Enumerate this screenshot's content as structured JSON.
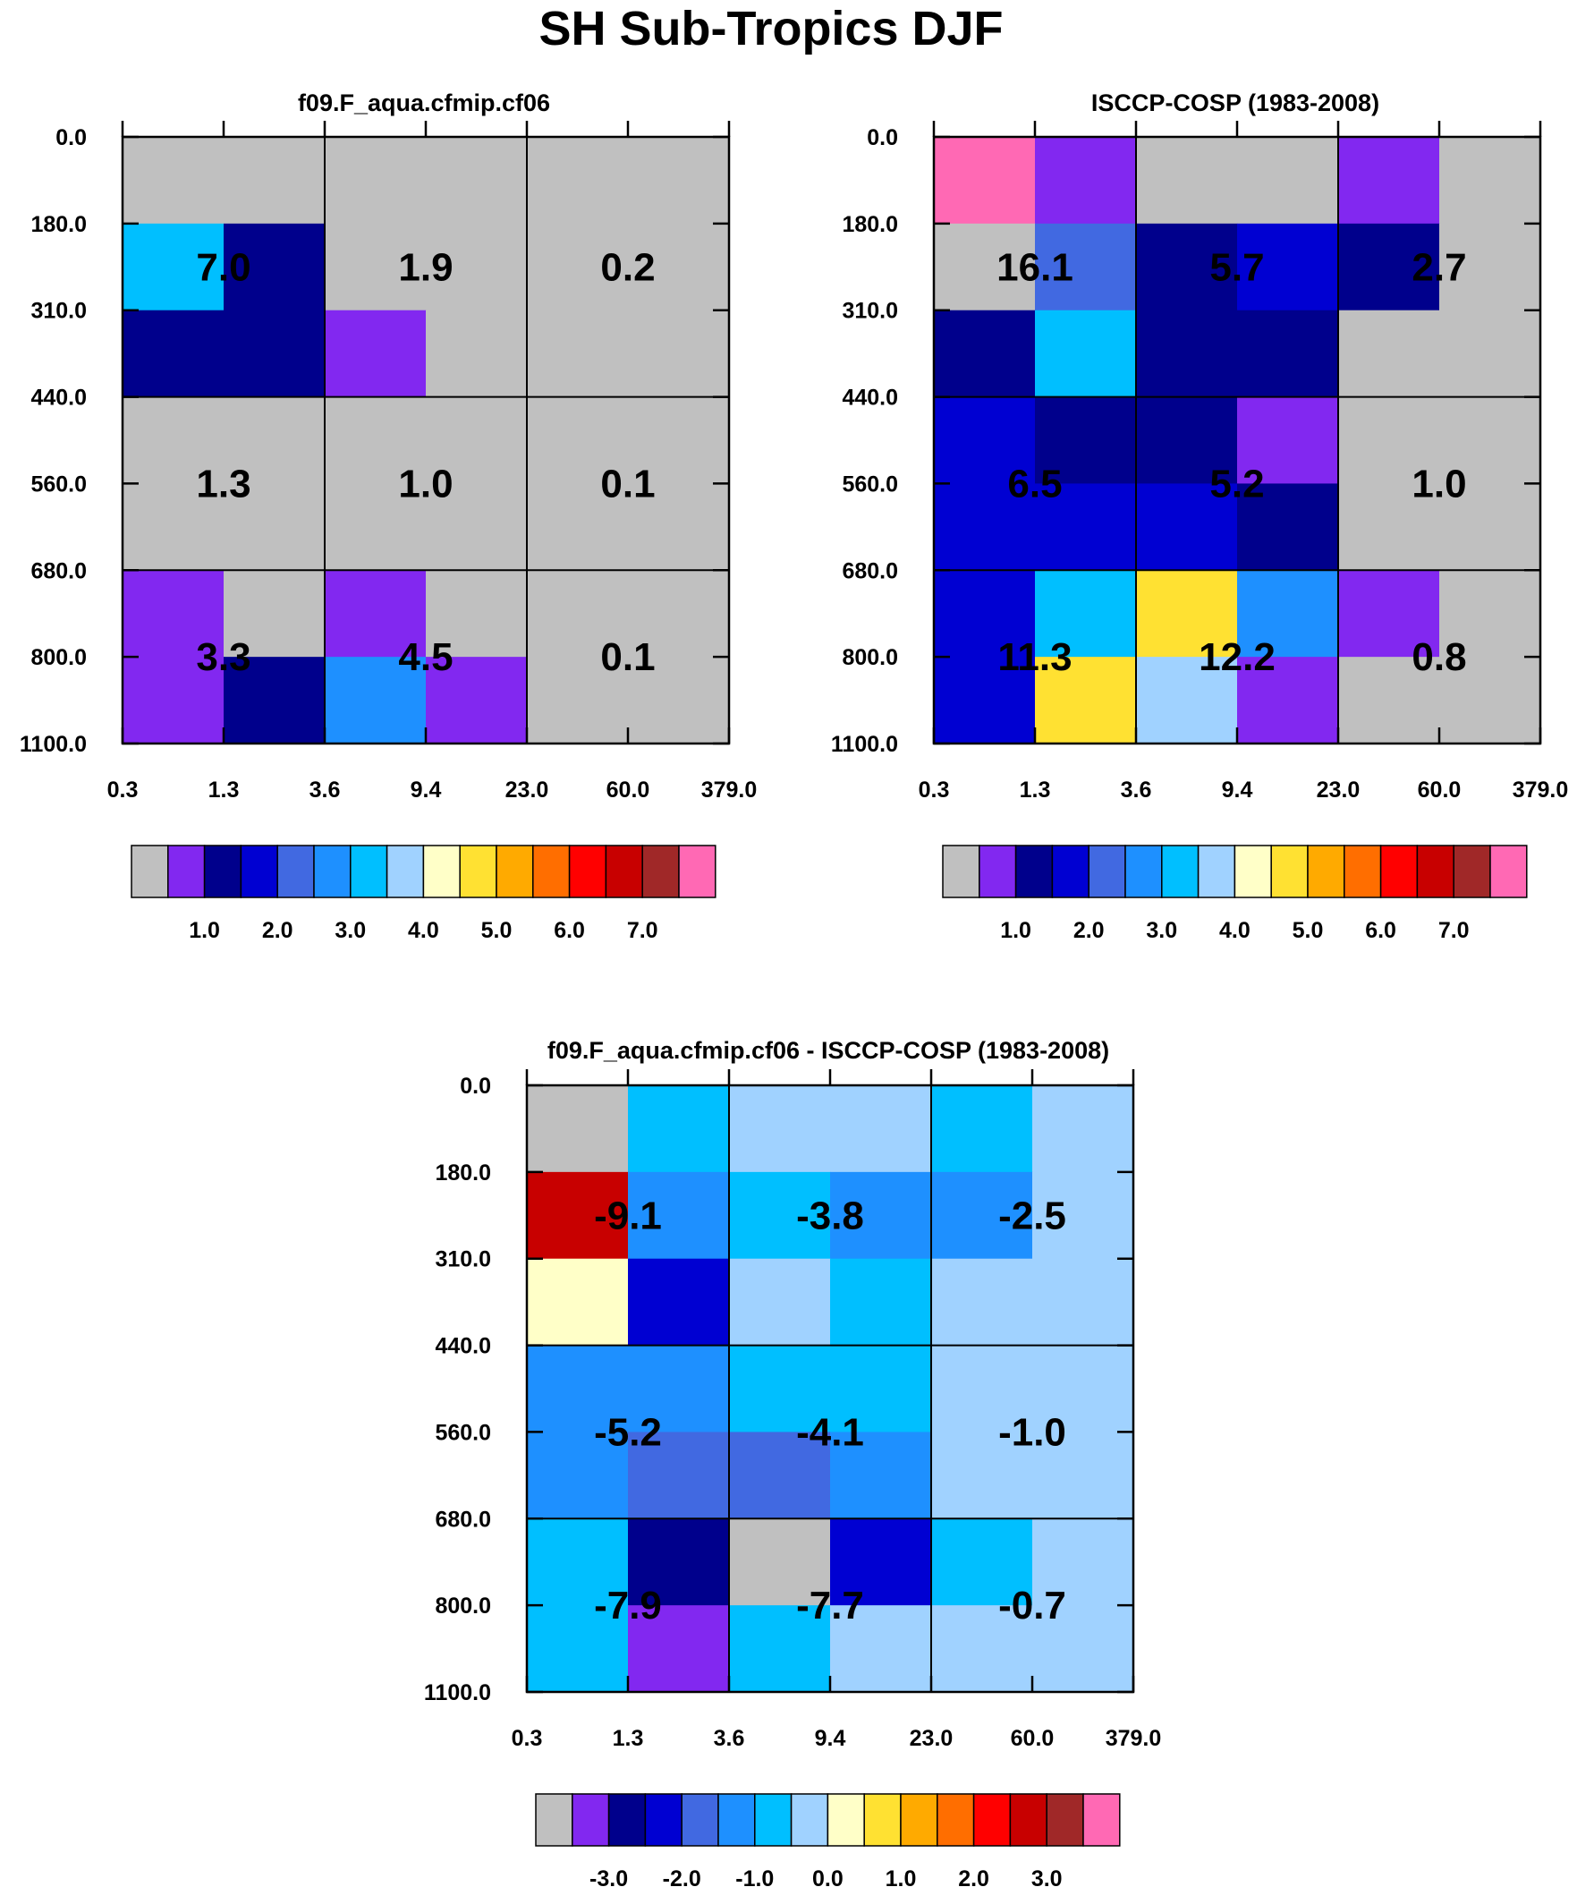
{
  "figure": {
    "title": "SH Sub-Tropics DJF"
  },
  "palette": {
    "colors": [
      "#c0c0c0",
      "#8228f0",
      "#00008c",
      "#0000d2",
      "#4169e1",
      "#1e90ff",
      "#00bfff",
      "#a0d2ff",
      "#ffffc8",
      "#ffe132",
      "#ffaa00",
      "#ff6e00",
      "#ff0000",
      "#c80000",
      "#a02828",
      "#ff69b4"
    ]
  },
  "chart_data": [
    {
      "type": "heatmap",
      "title": "f09.F_aqua.cfmip.cf06",
      "x_ticks": [
        "0.3",
        "1.3",
        "3.6",
        "9.4",
        "23.0",
        "60.0",
        "379.0"
      ],
      "y_ticks": [
        "0.0",
        "180.0",
        "310.0",
        "440.0",
        "560.0",
        "680.0",
        "800.0",
        "1100.0"
      ],
      "cells": [
        [
          0,
          0,
          0,
          0,
          0,
          0
        ],
        [
          6,
          2,
          0,
          0,
          0,
          0
        ],
        [
          2,
          2,
          1,
          0,
          0,
          0
        ],
        [
          0,
          0,
          0,
          0,
          0,
          0
        ],
        [
          0,
          0,
          0,
          0,
          0,
          0
        ],
        [
          1,
          0,
          1,
          0,
          0,
          0
        ],
        [
          1,
          2,
          5,
          1,
          0,
          0
        ]
      ],
      "box_values": [
        [
          "7.0",
          "1.9",
          "0.2"
        ],
        [
          "1.3",
          "1.0",
          "0.1"
        ],
        [
          "3.3",
          "4.5",
          "0.1"
        ]
      ],
      "colorbar": {
        "labels": [
          "1.0",
          "2.0",
          "3.0",
          "4.0",
          "5.0",
          "6.0",
          "7.0"
        ]
      }
    },
    {
      "type": "heatmap",
      "title": "ISCCP-COSP (1983-2008)",
      "x_ticks": [
        "0.3",
        "1.3",
        "3.6",
        "9.4",
        "23.0",
        "60.0",
        "379.0"
      ],
      "y_ticks": [
        "0.0",
        "180.0",
        "310.0",
        "440.0",
        "560.0",
        "680.0",
        "800.0",
        "1100.0"
      ],
      "cells": [
        [
          15,
          1,
          0,
          0,
          1,
          0
        ],
        [
          0,
          4,
          2,
          3,
          2,
          0
        ],
        [
          2,
          6,
          2,
          2,
          0,
          0
        ],
        [
          3,
          2,
          2,
          1,
          0,
          0
        ],
        [
          3,
          3,
          3,
          2,
          0,
          0
        ],
        [
          3,
          6,
          9,
          5,
          1,
          0
        ],
        [
          3,
          9,
          7,
          1,
          0,
          0
        ]
      ],
      "box_values": [
        [
          "16.1",
          "5.7",
          "2.7"
        ],
        [
          "6.5",
          "5.2",
          "1.0"
        ],
        [
          "11.3",
          "12.2",
          "0.8"
        ]
      ],
      "colorbar": {
        "labels": [
          "1.0",
          "2.0",
          "3.0",
          "4.0",
          "5.0",
          "6.0",
          "7.0"
        ]
      }
    },
    {
      "type": "heatmap",
      "title": "f09.F_aqua.cfmip.cf06 - ISCCP-COSP (1983-2008)",
      "x_ticks": [
        "0.3",
        "1.3",
        "3.6",
        "9.4",
        "23.0",
        "60.0",
        "379.0"
      ],
      "y_ticks": [
        "0.0",
        "180.0",
        "310.0",
        "440.0",
        "560.0",
        "680.0",
        "800.0",
        "1100.0"
      ],
      "cells": [
        [
          0,
          6,
          7,
          7,
          6,
          7
        ],
        [
          13,
          5,
          6,
          5,
          5,
          7
        ],
        [
          8,
          3,
          7,
          6,
          7,
          7
        ],
        [
          5,
          5,
          6,
          6,
          7,
          7
        ],
        [
          5,
          4,
          4,
          5,
          7,
          7
        ],
        [
          6,
          2,
          0,
          3,
          6,
          7
        ],
        [
          6,
          1,
          6,
          7,
          7,
          7
        ]
      ],
      "box_values": [
        [
          "-9.1",
          "-3.8",
          "-2.5"
        ],
        [
          "-5.2",
          "-4.1",
          "-1.0"
        ],
        [
          "-7.9",
          "-7.7",
          "-0.7"
        ]
      ],
      "colorbar": {
        "labels": [
          "-3.0",
          "-2.0",
          "-1.0",
          "0.0",
          "1.0",
          "2.0",
          "3.0"
        ]
      }
    }
  ]
}
